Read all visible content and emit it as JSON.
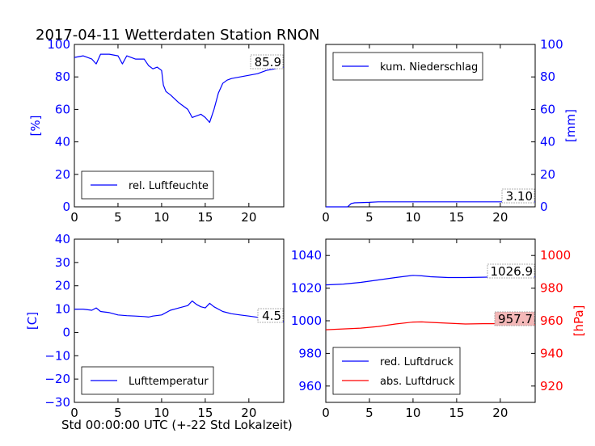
{
  "title": "2017-04-11 Wetterdaten Station RNON",
  "xlabel": "Std 00:00:00 UTC (+-22 Std Lokalzeit)",
  "colors": {
    "blue": "#0000ff",
    "red": "#ff0000",
    "badge_red_fill": "#f4b8b8"
  },
  "chart_data": [
    {
      "type": "line",
      "ylabel": "[%]",
      "xlim": [
        0,
        24
      ],
      "ylim": [
        0,
        100
      ],
      "x_ticks": [
        "0",
        "5",
        "10",
        "15",
        "20"
      ],
      "y_ticks": [
        "0",
        "20",
        "40",
        "60",
        "80",
        "100"
      ],
      "legend_position": "bottom-left",
      "last_value_label": "85.9",
      "series": [
        {
          "name": "rel. Luftfeuchte",
          "x": [
            0,
            1,
            2,
            2.5,
            3,
            4,
            5,
            5.5,
            6,
            7,
            8,
            8.5,
            9,
            9.5,
            10,
            10.2,
            10.5,
            11,
            12,
            12.5,
            13,
            13.5,
            14,
            14.5,
            15,
            15.5,
            16,
            16.5,
            17,
            17.5,
            18,
            19,
            20,
            21,
            22,
            23,
            23.5,
            24
          ],
          "y": [
            92,
            93,
            91,
            88,
            94,
            94,
            93,
            88,
            93,
            91,
            91,
            87,
            85,
            86,
            84,
            75,
            71,
            69,
            64,
            62,
            60,
            55,
            56,
            57,
            55,
            52,
            60,
            70,
            76,
            78,
            79,
            80,
            81,
            82,
            84,
            85,
            86,
            85.9
          ]
        }
      ]
    },
    {
      "type": "line",
      "ylabel": "[mm]",
      "xlim": [
        0,
        24
      ],
      "ylim": [
        0,
        100
      ],
      "x_ticks": [
        "0",
        "5",
        "10",
        "15",
        "20"
      ],
      "y_ticks": [
        "0",
        "20",
        "40",
        "60",
        "80",
        "100"
      ],
      "legend_position": "top-left",
      "last_value_label": "3.10",
      "series": [
        {
          "name": "kum. Niederschlag",
          "x": [
            0,
            2.5,
            2.9,
            3.3,
            5,
            6,
            24
          ],
          "y": [
            0,
            0,
            2.0,
            2.5,
            2.8,
            3.1,
            3.1
          ]
        }
      ]
    },
    {
      "type": "line",
      "ylabel": "[C]",
      "xlim": [
        0,
        24
      ],
      "ylim": [
        -30,
        40
      ],
      "x_ticks": [
        "0",
        "5",
        "10",
        "15",
        "20"
      ],
      "y_ticks": [
        "−30",
        "−20",
        "−10",
        "0",
        "10",
        "20",
        "30",
        "40"
      ],
      "legend_position": "bottom-left",
      "last_value_label": "4.5",
      "series": [
        {
          "name": "Lufttemperatur",
          "x": [
            0,
            1,
            2,
            2.5,
            3,
            4,
            5,
            6,
            7,
            8,
            8.5,
            9,
            10,
            11,
            12,
            13,
            13.5,
            14,
            14.5,
            15,
            15.5,
            16,
            17,
            18,
            19,
            20,
            21,
            22,
            23,
            24
          ],
          "y": [
            10,
            10,
            9.5,
            10.5,
            9.0,
            8.5,
            7.5,
            7.2,
            7.0,
            6.8,
            6.6,
            7.0,
            7.5,
            9.5,
            10.5,
            11.5,
            13.5,
            12,
            11,
            10.5,
            12.5,
            11,
            9,
            8,
            7.5,
            7,
            6.5,
            5.5,
            5,
            4.5
          ]
        }
      ]
    },
    {
      "type": "line",
      "xlim": [
        0,
        24
      ],
      "ylim_left": [
        950,
        1050
      ],
      "ylim_right": [
        910,
        1010
      ],
      "ylabel_right": "[hPa]",
      "x_ticks": [
        "0",
        "5",
        "10",
        "15",
        "20"
      ],
      "y_ticks_left": [
        "960",
        "980",
        "1000",
        "1020",
        "1040"
      ],
      "y_ticks_right": [
        "920",
        "940",
        "960",
        "980",
        "1000"
      ],
      "legend_position": "bottom-left",
      "last_value_labels": [
        "1026.9",
        "957.7"
      ],
      "series": [
        {
          "name": "red. Luftdruck",
          "axis": "left",
          "x": [
            0,
            2,
            4,
            6,
            8,
            10,
            11,
            12,
            14,
            16,
            18,
            20,
            22,
            24
          ],
          "y": [
            1022,
            1022.5,
            1023.5,
            1025,
            1026.5,
            1027.8,
            1027.5,
            1027,
            1026.5,
            1026.5,
            1026.7,
            1026.9,
            1026.9,
            1026.9
          ]
        },
        {
          "name": "abs. Luftdruck",
          "axis": "right",
          "x": [
            0,
            2,
            4,
            6,
            8,
            10,
            11,
            12,
            14,
            16,
            18,
            20,
            22,
            24
          ],
          "y": [
            954.5,
            955,
            955.5,
            956.5,
            958,
            959.2,
            959.3,
            959,
            958.5,
            958,
            958.2,
            958.2,
            957.8,
            957.7
          ]
        }
      ]
    }
  ]
}
